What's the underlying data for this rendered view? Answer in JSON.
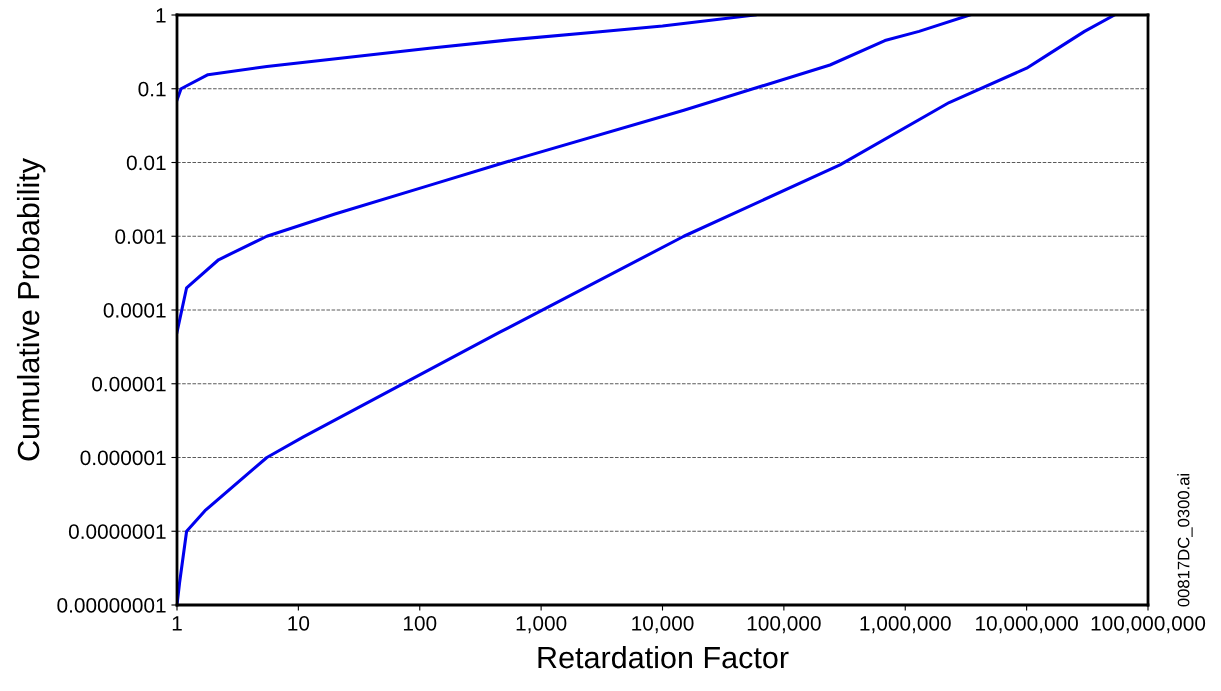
{
  "chart_data": {
    "type": "line",
    "xlabel": "Retardation Factor",
    "ylabel": "Cumulative Probability",
    "log": "xy",
    "grid": "y",
    "line_style": "solid",
    "marker": "none",
    "xlim": [
      1,
      100000000
    ],
    "ylim": [
      1e-08,
      1
    ],
    "xticks": [
      {
        "value": 1,
        "label": "1"
      },
      {
        "value": 10,
        "label": "10"
      },
      {
        "value": 100,
        "label": "100"
      },
      {
        "value": 1000,
        "label": "1,000"
      },
      {
        "value": 10000,
        "label": "10,000"
      },
      {
        "value": 100000,
        "label": "100,000"
      },
      {
        "value": 1000000,
        "label": "1,000,000"
      },
      {
        "value": 10000000,
        "label": "10,000,000"
      },
      {
        "value": 100000000,
        "label": "100,000,000"
      }
    ],
    "yticks": [
      {
        "value": 1e-08,
        "label": "0.00000001"
      },
      {
        "value": 1e-07,
        "label": "0.0000001"
      },
      {
        "value": 1e-06,
        "label": "0.000001"
      },
      {
        "value": 1e-05,
        "label": "0.00001"
      },
      {
        "value": 0.0001,
        "label": "0.0001"
      },
      {
        "value": 0.001,
        "label": "0.001"
      },
      {
        "value": 0.01,
        "label": "0.01"
      },
      {
        "value": 0.1,
        "label": "0.1"
      },
      {
        "value": 1,
        "label": "1"
      }
    ],
    "series": [
      {
        "color": "#0000ee",
        "x": [
          1,
          1.08,
          1.8,
          5.5,
          120,
          550,
          2900,
          10000,
          58000
        ],
        "values": [
          0.07,
          0.1,
          0.155,
          0.2,
          0.355,
          0.46,
          0.59,
          0.71,
          1
        ]
      },
      {
        "color": "#0000ee",
        "x": [
          1,
          1.2,
          2.2,
          5.5,
          20,
          120,
          500,
          15000,
          240000,
          680000,
          1300000,
          3400000
        ],
        "values": [
          5e-05,
          0.0002,
          0.00048,
          0.001,
          0.002,
          0.0049,
          0.01,
          0.051,
          0.21,
          0.45,
          0.6,
          1
        ]
      },
      {
        "color": "#0000ee",
        "x": [
          1,
          1.05,
          1.2,
          1.7,
          5.5,
          11,
          457,
          15000,
          290000,
          2300000,
          10000000,
          15000000,
          30000000,
          53000000
        ],
        "values": [
          1e-08,
          2e-08,
          1e-07,
          1.9e-07,
          1e-06,
          1.9e-06,
          5e-05,
          0.001,
          0.0093,
          0.065,
          0.19,
          0.29,
          0.6,
          1
        ]
      }
    ],
    "annotations": [
      "00817DC_0300.ai"
    ]
  }
}
